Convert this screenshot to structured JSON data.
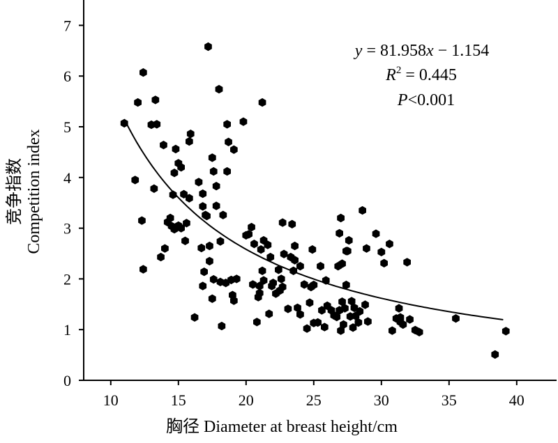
{
  "chart_data": {
    "type": "scatter",
    "xlabel": "胸径 Diameter at breast height/cm",
    "ylabel_cn": "竞争指数",
    "ylabel_en": "Competition index",
    "xlim": [
      8,
      42
    ],
    "ylim": [
      0,
      7.5
    ],
    "x_ticks": [
      10,
      15,
      20,
      25,
      30,
      35,
      40
    ],
    "y_ticks": [
      0,
      1,
      2,
      3,
      4,
      5,
      6,
      7
    ],
    "x_tick_labels": [
      "10",
      "15",
      "20",
      "25",
      "30",
      "35",
      "40"
    ],
    "y_tick_labels": [
      "0",
      "1",
      "2",
      "3",
      "4",
      "5",
      "6",
      "7"
    ],
    "grid": false,
    "legend": "none",
    "annotation": {
      "equation": {
        "y": "y",
        "eq": " = 81.958",
        "x": "x",
        "rest": " − 1.154"
      },
      "r2": {
        "r": "R",
        "sup": "2",
        "rest": " = 0.445"
      },
      "p": {
        "p": "P",
        "rest": "<0.001"
      }
    },
    "trend": {
      "type": "power",
      "a": 81.958,
      "b": -1.154,
      "x_range": [
        11,
        39
      ]
    },
    "points": [
      [
        11.0,
        5.07
      ],
      [
        11.8,
        3.95
      ],
      [
        12.0,
        5.48
      ],
      [
        12.3,
        3.15
      ],
      [
        12.4,
        6.07
      ],
      [
        12.4,
        2.19
      ],
      [
        13.0,
        5.04
      ],
      [
        13.2,
        3.78
      ],
      [
        13.3,
        5.53
      ],
      [
        13.4,
        5.05
      ],
      [
        13.7,
        2.43
      ],
      [
        13.9,
        4.64
      ],
      [
        14.0,
        2.6
      ],
      [
        14.2,
        3.12
      ],
      [
        14.4,
        3.2
      ],
      [
        14.5,
        3.04
      ],
      [
        14.6,
        3.66
      ],
      [
        14.7,
        2.98
      ],
      [
        14.8,
        4.56
      ],
      [
        14.7,
        4.09
      ],
      [
        15.0,
        3.05
      ],
      [
        15.0,
        4.28
      ],
      [
        15.2,
        4.2
      ],
      [
        15.2,
        3.0
      ],
      [
        15.4,
        3.67
      ],
      [
        15.5,
        2.75
      ],
      [
        15.6,
        3.1
      ],
      [
        15.8,
        4.71
      ],
      [
        15.8,
        3.59
      ],
      [
        15.9,
        4.86
      ],
      [
        16.2,
        1.24
      ],
      [
        16.5,
        3.91
      ],
      [
        16.7,
        2.61
      ],
      [
        16.8,
        3.68
      ],
      [
        16.8,
        3.43
      ],
      [
        16.8,
        1.86
      ],
      [
        16.9,
        2.14
      ],
      [
        17.0,
        3.26
      ],
      [
        17.1,
        3.24
      ],
      [
        17.2,
        6.58
      ],
      [
        17.3,
        2.65
      ],
      [
        17.3,
        2.35
      ],
      [
        17.5,
        1.61
      ],
      [
        17.5,
        4.39
      ],
      [
        17.6,
        4.12
      ],
      [
        17.6,
        1.99
      ],
      [
        17.8,
        3.83
      ],
      [
        17.8,
        3.44
      ],
      [
        18.0,
        5.74
      ],
      [
        18.1,
        2.74
      ],
      [
        18.1,
        1.94
      ],
      [
        18.2,
        1.07
      ],
      [
        18.3,
        3.26
      ],
      [
        18.5,
        1.92
      ],
      [
        18.6,
        5.05
      ],
      [
        18.6,
        4.12
      ],
      [
        18.7,
        4.7
      ],
      [
        18.9,
        1.98
      ],
      [
        19.0,
        1.68
      ],
      [
        19.1,
        4.55
      ],
      [
        19.1,
        1.57
      ],
      [
        19.3,
        2.0
      ],
      [
        19.8,
        5.1
      ],
      [
        20.0,
        2.86
      ],
      [
        20.2,
        2.88
      ],
      [
        20.4,
        3.02
      ],
      [
        20.5,
        1.89
      ],
      [
        20.6,
        2.69
      ],
      [
        20.8,
        1.15
      ],
      [
        20.9,
        1.64
      ],
      [
        21.0,
        1.86
      ],
      [
        21.0,
        1.72
      ],
      [
        21.1,
        2.58
      ],
      [
        21.2,
        5.48
      ],
      [
        21.2,
        2.16
      ],
      [
        21.3,
        1.97
      ],
      [
        21.3,
        2.76
      ],
      [
        21.6,
        2.67
      ],
      [
        21.7,
        1.31
      ],
      [
        21.8,
        2.43
      ],
      [
        21.9,
        1.86
      ],
      [
        22.0,
        1.92
      ],
      [
        22.2,
        1.71
      ],
      [
        22.4,
        2.18
      ],
      [
        22.5,
        1.77
      ],
      [
        22.6,
        2.0
      ],
      [
        22.7,
        3.11
      ],
      [
        22.7,
        1.84
      ],
      [
        22.8,
        2.49
      ],
      [
        23.1,
        1.41
      ],
      [
        23.3,
        2.43
      ],
      [
        23.4,
        3.08
      ],
      [
        23.5,
        2.16
      ],
      [
        23.6,
        2.65
      ],
      [
        23.6,
        2.37
      ],
      [
        23.8,
        1.43
      ],
      [
        24.0,
        2.25
      ],
      [
        24.0,
        1.3
      ],
      [
        24.3,
        1.89
      ],
      [
        24.5,
        1.02
      ],
      [
        24.7,
        1.53
      ],
      [
        24.8,
        1.84
      ],
      [
        24.9,
        2.58
      ],
      [
        25.0,
        1.13
      ],
      [
        25.0,
        1.88
      ],
      [
        25.3,
        1.14
      ],
      [
        25.5,
        2.25
      ],
      [
        25.6,
        1.38
      ],
      [
        25.8,
        1.05
      ],
      [
        25.9,
        1.97
      ],
      [
        26.0,
        1.47
      ],
      [
        26.3,
        1.38
      ],
      [
        26.5,
        1.28
      ],
      [
        26.7,
        1.25
      ],
      [
        26.8,
        2.25
      ],
      [
        26.9,
        1.38
      ],
      [
        26.9,
        2.9
      ],
      [
        27.0,
        3.2
      ],
      [
        27.0,
        0.98
      ],
      [
        27.1,
        2.3
      ],
      [
        27.1,
        1.55
      ],
      [
        27.2,
        1.1
      ],
      [
        27.3,
        1.42
      ],
      [
        27.4,
        2.55
      ],
      [
        27.4,
        1.88
      ],
      [
        27.5,
        2.55
      ],
      [
        27.6,
        2.76
      ],
      [
        27.7,
        1.26
      ],
      [
        27.8,
        1.56
      ],
      [
        27.9,
        1.04
      ],
      [
        28.0,
        1.43
      ],
      [
        28.1,
        1.27
      ],
      [
        28.3,
        1.14
      ],
      [
        28.4,
        1.36
      ],
      [
        28.6,
        3.35
      ],
      [
        28.8,
        1.49
      ],
      [
        28.9,
        2.6
      ],
      [
        29.0,
        1.16
      ],
      [
        29.6,
        2.89
      ],
      [
        30.0,
        2.53
      ],
      [
        30.2,
        2.31
      ],
      [
        30.6,
        2.69
      ],
      [
        30.8,
        0.98
      ],
      [
        31.1,
        1.22
      ],
      [
        31.3,
        1.42
      ],
      [
        31.4,
        1.15
      ],
      [
        31.4,
        1.24
      ],
      [
        31.6,
        1.1
      ],
      [
        31.9,
        2.33
      ],
      [
        32.1,
        1.2
      ],
      [
        32.5,
        0.99
      ],
      [
        32.8,
        0.95
      ],
      [
        35.5,
        1.22
      ],
      [
        38.4,
        0.51
      ],
      [
        39.2,
        0.97
      ]
    ]
  }
}
